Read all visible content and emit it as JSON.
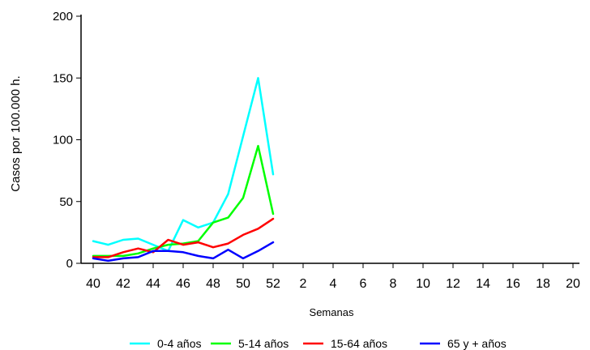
{
  "chart_data": {
    "type": "line",
    "title": "",
    "xlabel": "Semanas",
    "ylabel": "Casos por 100.000 h.",
    "ylim": [
      0,
      200
    ],
    "yticks": [
      0,
      50,
      100,
      150,
      200
    ],
    "grid": false,
    "legend_position": "bottom",
    "x_tick_labels": [
      "40",
      "42",
      "44",
      "46",
      "48",
      "50",
      "52",
      "2",
      "4",
      "6",
      "8",
      "10",
      "12",
      "14",
      "16",
      "18",
      "20"
    ],
    "x_weeks": [
      "40",
      "41",
      "42",
      "43",
      "44",
      "45",
      "46",
      "47",
      "48",
      "49",
      "50",
      "51",
      "52"
    ],
    "series": [
      {
        "name": "0-4 años",
        "color": "#00ffff",
        "values": [
          18,
          15,
          19,
          20,
          15,
          10,
          35,
          29,
          33,
          56,
          103,
          150,
          72
        ]
      },
      {
        "name": "5-14 años",
        "color": "#00ff00",
        "values": [
          6,
          6,
          6,
          8,
          12,
          15,
          16,
          18,
          33,
          37,
          53,
          95,
          40
        ]
      },
      {
        "name": "15-64 años",
        "color": "#ff0000",
        "values": [
          5,
          5,
          9,
          12,
          9,
          19,
          15,
          17,
          13,
          16,
          23,
          28,
          36
        ]
      },
      {
        "name": "65 y + años",
        "color": "#0000ff",
        "values": [
          4,
          2,
          4,
          5,
          10,
          10,
          9,
          6,
          4,
          11,
          4,
          10,
          17
        ]
      }
    ]
  }
}
